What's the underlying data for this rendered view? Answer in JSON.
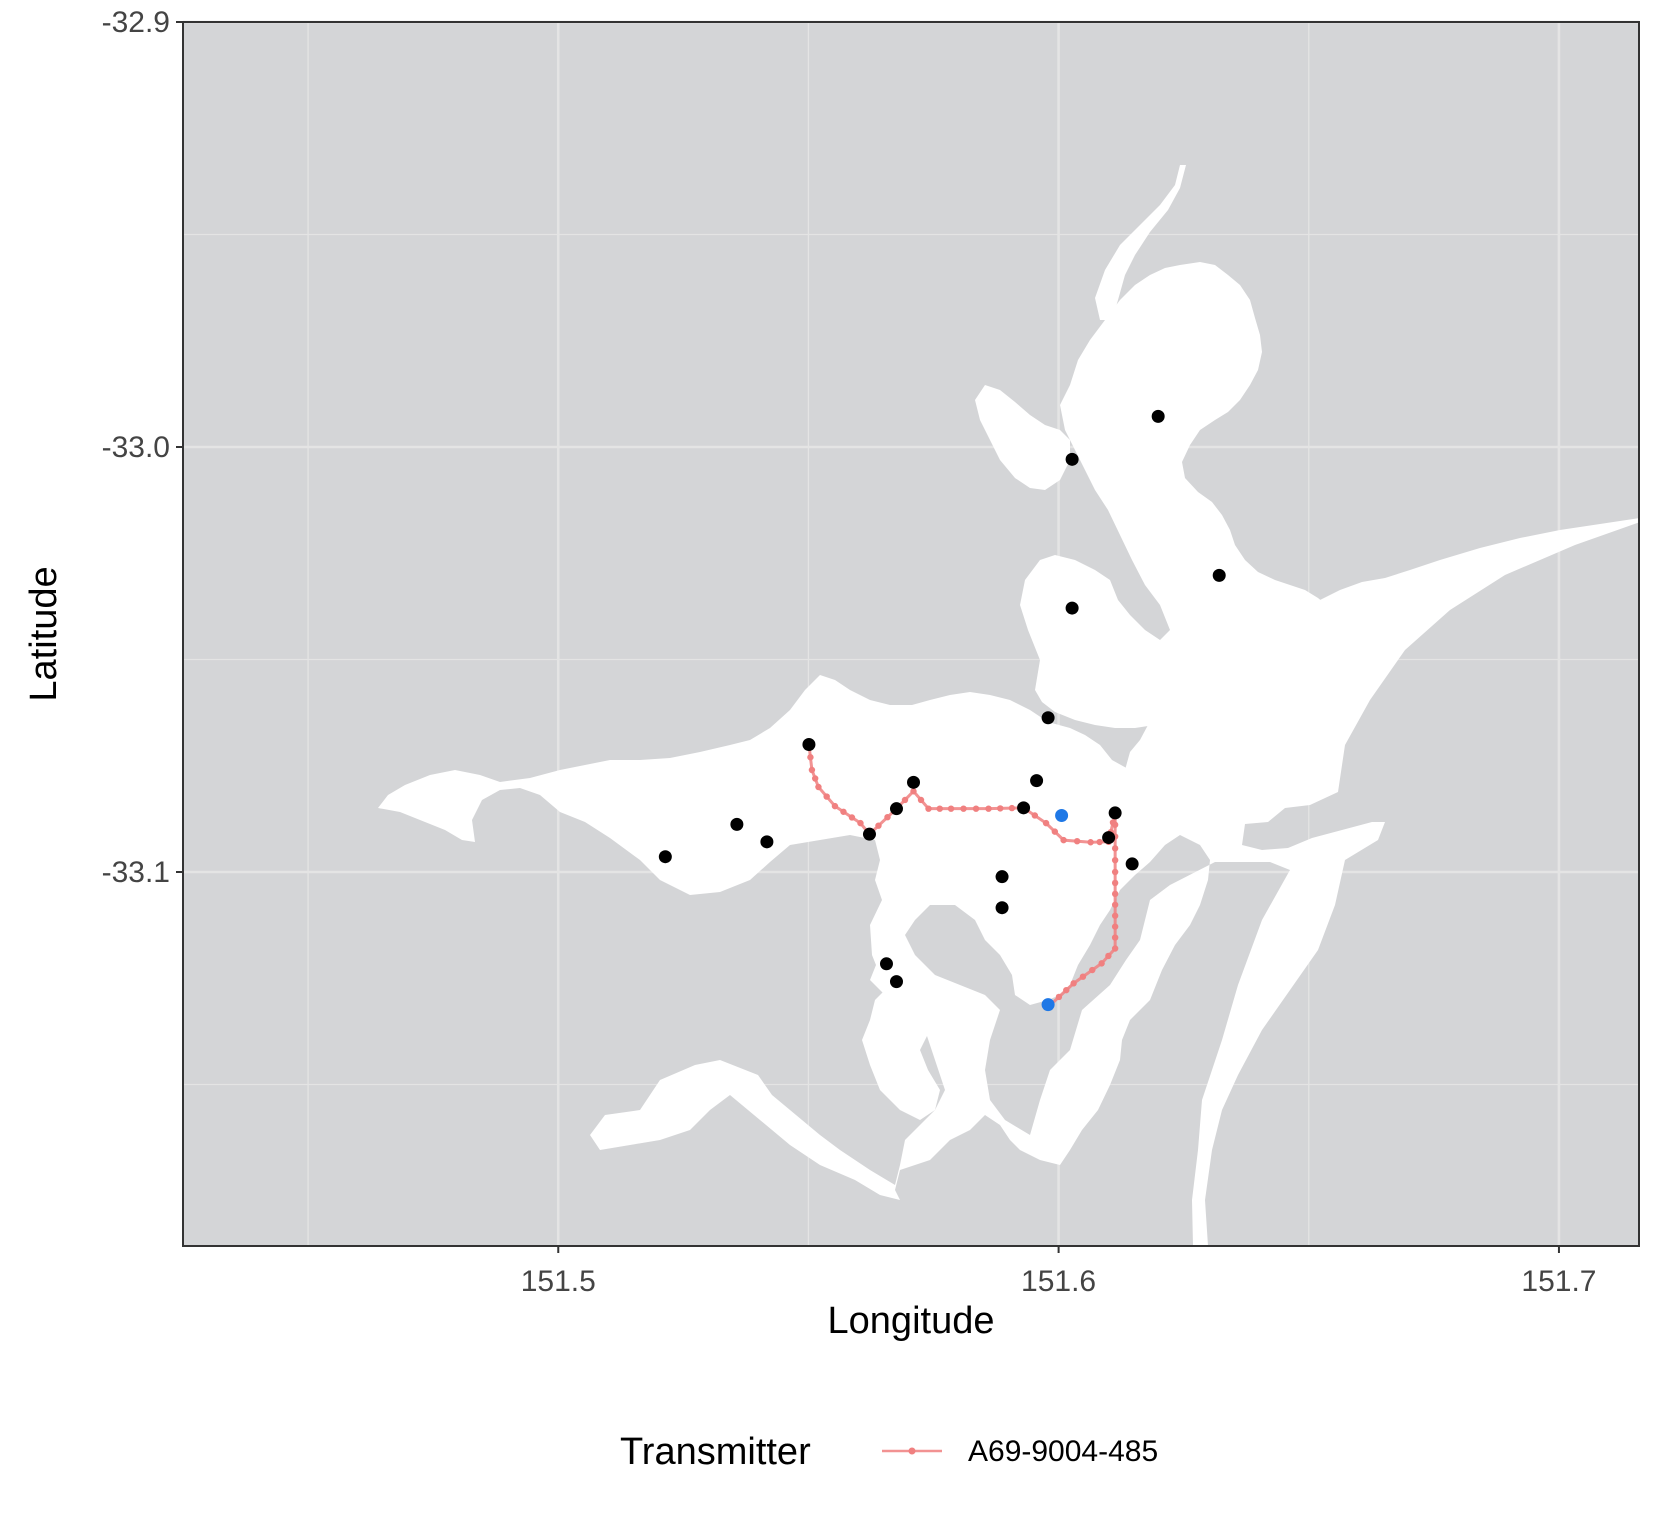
{
  "chart_data": {
    "type": "scatter",
    "title": "",
    "xlabel": "Longitude",
    "ylabel": "Latitude",
    "xlim": [
      151.425,
      151.716
    ],
    "ylim": [
      -33.188,
      -32.9
    ],
    "x_ticks": [
      "151.5",
      "151.6",
      "151.7"
    ],
    "y_ticks": [
      "-32.9",
      "-33.0",
      "-33.1"
    ],
    "grid": true,
    "legend": {
      "title": "Transmitter",
      "placement": "bottom",
      "entries": [
        "A69-9004-485"
      ]
    },
    "colors": {
      "panel_background": "#d4d5d7",
      "water": "#ffffff",
      "gridline": "#e4e4e4",
      "receiver": "#000000",
      "track": "#f08080",
      "endpoint": "#1f78e6"
    },
    "receivers": [
      {
        "x": 151.5214,
        "y": -33.0964
      },
      {
        "x": 151.5357,
        "y": -33.0888
      },
      {
        "x": 151.5417,
        "y": -33.0929
      },
      {
        "x": 151.5501,
        "y": -33.07
      },
      {
        "x": 151.5622,
        "y": -33.0911
      },
      {
        "x": 151.5676,
        "y": -33.0851
      },
      {
        "x": 151.571,
        "y": -33.0789
      },
      {
        "x": 151.5887,
        "y": -33.1011
      },
      {
        "x": 151.5887,
        "y": -33.1084
      },
      {
        "x": 151.593,
        "y": -33.0849
      },
      {
        "x": 151.5956,
        "y": -33.0785
      },
      {
        "x": 151.5979,
        "y": -33.0637
      },
      {
        "x": 151.6027,
        "y": -33.0379
      },
      {
        "x": 151.6027,
        "y": -33.0029
      },
      {
        "x": 151.61,
        "y": -33.0919
      },
      {
        "x": 151.6113,
        "y": -33.0861
      },
      {
        "x": 151.6147,
        "y": -33.0981
      },
      {
        "x": 151.6199,
        "y": -32.9928
      },
      {
        "x": 151.6321,
        "y": -33.0302
      },
      {
        "x": 151.5656,
        "y": -33.1216
      },
      {
        "x": 151.5676,
        "y": -33.1258
      }
    ],
    "series": [
      {
        "name": "A69-9004-485",
        "type": "line",
        "x": [
          151.5501,
          151.5507,
          151.552,
          151.5553,
          151.5604,
          151.5622,
          151.5676,
          151.571,
          151.574,
          151.5785,
          151.586,
          151.593,
          151.5975,
          151.601,
          151.6064,
          151.61,
          151.6113,
          151.6113,
          151.6113,
          151.6086,
          151.603,
          151.5986
        ],
        "y": [
          -33.07,
          -33.076,
          -33.08,
          -33.0845,
          -33.0885,
          -33.0911,
          -33.0851,
          -33.081,
          -33.0851,
          -33.0851,
          -33.0851,
          -33.0849,
          -33.0885,
          -33.0925,
          -33.093,
          -33.0929,
          -33.0861,
          -33.1,
          -33.118,
          -33.1215,
          -33.1262,
          -33.131
        ]
      }
    ],
    "endpoints": [
      {
        "x": 151.6006,
        "y": -33.0867
      },
      {
        "x": 151.5979,
        "y": -33.1312
      }
    ]
  }
}
